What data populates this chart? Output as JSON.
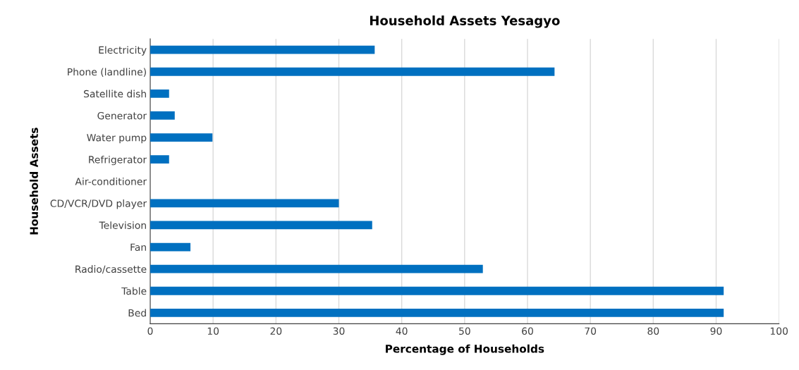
{
  "chart_data": {
    "type": "bar",
    "orientation": "horizontal",
    "title": "Household Assets Yesagyo",
    "xlabel": "Percentage of Households",
    "ylabel": "Household Assets",
    "categories": [
      "Electricity",
      "Phone (landline)",
      "Satellite dish",
      "Generator",
      "Water pump",
      "Refrigerator",
      "Air-conditioner",
      "CD/VCR/DVD player",
      "Television",
      "Fan",
      "Radio/cassette",
      "Table",
      "Bed"
    ],
    "values": [
      35.7,
      64.3,
      3.0,
      3.9,
      9.9,
      3.0,
      0,
      30.0,
      35.3,
      6.4,
      52.9,
      91.2,
      91.2
    ],
    "color": "#0070c0",
    "xlim": [
      0,
      100
    ],
    "xticks": [
      0,
      10,
      20,
      30,
      40,
      50,
      60,
      70,
      80,
      90,
      100
    ],
    "grid": "x",
    "legend": false
  }
}
